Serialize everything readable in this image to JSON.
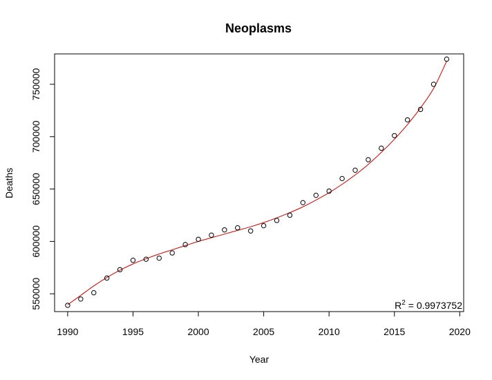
{
  "chart_data": {
    "type": "scatter",
    "title": "Neoplasms",
    "xlabel": "Year",
    "ylabel": "Deaths",
    "xlim": [
      1989,
      2020.3
    ],
    "ylim": [
      533000,
      779000
    ],
    "x_ticks": [
      1990,
      1995,
      2000,
      2005,
      2010,
      2015,
      2020
    ],
    "y_ticks": [
      550000,
      600000,
      650000,
      700000,
      750000
    ],
    "grid": false,
    "series": [
      {
        "x": [
          1990,
          1991,
          1992,
          1993,
          1994,
          1995,
          1996,
          1997,
          1998,
          1999,
          2000,
          2001,
          2002,
          2003,
          2004,
          2005,
          2006,
          2007,
          2008,
          2009,
          2010,
          2011,
          2012,
          2013,
          2014,
          2015,
          2016,
          2017,
          2018,
          2019
        ],
        "y": [
          539000,
          545000,
          551000,
          565000,
          573000,
          582000,
          583000,
          584000,
          589000,
          597000,
          602000,
          606000,
          611000,
          613000,
          610000,
          615000,
          620000,
          625000,
          637000,
          644000,
          648000,
          660000,
          668000,
          678000,
          689000,
          701000,
          716000,
          726000,
          750000,
          774000
        ]
      }
    ],
    "fit": {
      "color": "#cc0000",
      "x": [
        1990,
        1991,
        1992,
        1993,
        1994,
        1995,
        1996,
        1997,
        1998,
        1999,
        2000,
        2001,
        2002,
        2003,
        2004,
        2005,
        2006,
        2007,
        2008,
        2009,
        2010,
        2011,
        2012,
        2013,
        2014,
        2015,
        2016,
        2017,
        2018,
        2019
      ],
      "y": [
        539500,
        548500,
        557500,
        565500,
        572500,
        578500,
        583500,
        588000,
        592000,
        596000,
        600000,
        603500,
        607000,
        610500,
        614000,
        618000,
        622500,
        627500,
        633000,
        639500,
        646500,
        654500,
        663500,
        673500,
        685000,
        697500,
        711500,
        727500,
        746000,
        772000
      ]
    },
    "annotation": {
      "r2_prefix": "R",
      "r2_exp": "2",
      "r2_value": " = 0.9973752"
    }
  }
}
